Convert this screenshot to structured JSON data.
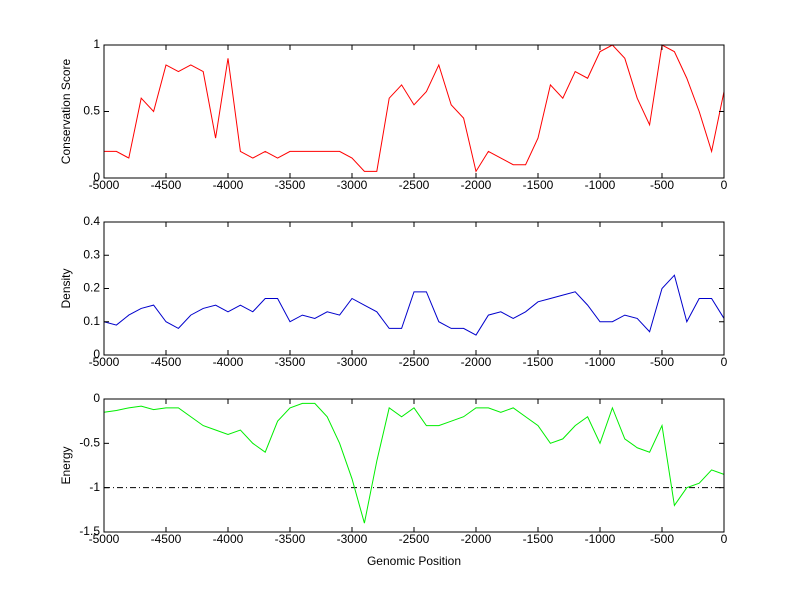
{
  "chart_data": [
    {
      "type": "line",
      "ylabel": "Conservation Score",
      "x": [
        -5000,
        -4900,
        -4800,
        -4700,
        -4600,
        -4500,
        -4400,
        -4300,
        -4200,
        -4100,
        -4000,
        -3900,
        -3800,
        -3700,
        -3600,
        -3500,
        -3400,
        -3300,
        -3200,
        -3100,
        -3000,
        -2900,
        -2800,
        -2700,
        -2600,
        -2500,
        -2400,
        -2300,
        -2200,
        -2100,
        -2000,
        -1900,
        -1800,
        -1700,
        -1600,
        -1500,
        -1400,
        -1300,
        -1200,
        -1100,
        -1000,
        -900,
        -800,
        -700,
        -600,
        -500,
        -400,
        -300,
        -200,
        -100,
        0
      ],
      "series": [
        {
          "color": "#ff0000",
          "values": [
            0.2,
            0.2,
            0.15,
            0.6,
            0.5,
            0.85,
            0.8,
            0.85,
            0.8,
            0.3,
            0.9,
            0.2,
            0.15,
            0.2,
            0.15,
            0.2,
            0.2,
            0.2,
            0.2,
            0.2,
            0.15,
            0.05,
            0.05,
            0.6,
            0.7,
            0.55,
            0.65,
            0.85,
            0.55,
            0.45,
            0.05,
            0.2,
            0.15,
            0.1,
            0.1,
            0.3,
            0.7,
            0.6,
            0.8,
            0.75,
            0.95,
            1.0,
            0.9,
            0.6,
            0.4,
            1.0,
            0.95,
            0.75,
            0.5,
            0.2,
            0.65
          ]
        }
      ],
      "xlim": [
        -5000,
        0
      ],
      "xticks": [
        -5000,
        -4500,
        -4000,
        -3500,
        -3000,
        -2500,
        -2000,
        -1500,
        -1000,
        -500,
        0
      ],
      "ylim": [
        0,
        1
      ],
      "yticks": [
        0,
        0.5,
        1
      ]
    },
    {
      "type": "line",
      "ylabel": "Density",
      "x": [
        -5000,
        -4900,
        -4800,
        -4700,
        -4600,
        -4500,
        -4400,
        -4300,
        -4200,
        -4100,
        -4000,
        -3900,
        -3800,
        -3700,
        -3600,
        -3500,
        -3400,
        -3300,
        -3200,
        -3100,
        -3000,
        -2900,
        -2800,
        -2700,
        -2600,
        -2500,
        -2400,
        -2300,
        -2200,
        -2100,
        -2000,
        -1900,
        -1800,
        -1700,
        -1600,
        -1500,
        -1400,
        -1300,
        -1200,
        -1100,
        -1000,
        -900,
        -800,
        -700,
        -600,
        -500,
        -400,
        -300,
        -200,
        -100,
        0
      ],
      "series": [
        {
          "color": "#0000cc",
          "values": [
            0.1,
            0.09,
            0.12,
            0.14,
            0.15,
            0.1,
            0.08,
            0.12,
            0.14,
            0.15,
            0.13,
            0.15,
            0.13,
            0.17,
            0.17,
            0.1,
            0.12,
            0.11,
            0.13,
            0.12,
            0.17,
            0.15,
            0.13,
            0.08,
            0.08,
            0.19,
            0.19,
            0.1,
            0.08,
            0.08,
            0.06,
            0.12,
            0.13,
            0.11,
            0.13,
            0.16,
            0.17,
            0.18,
            0.19,
            0.15,
            0.1,
            0.1,
            0.12,
            0.11,
            0.07,
            0.2,
            0.24,
            0.1,
            0.17,
            0.17,
            0.11
          ]
        }
      ],
      "xlim": [
        -5000,
        0
      ],
      "xticks": [
        -5000,
        -4500,
        -4000,
        -3500,
        -3000,
        -2500,
        -2000,
        -1500,
        -1000,
        -500,
        0
      ],
      "ylim": [
        0,
        0.4
      ],
      "yticks": [
        0,
        0.1,
        0.2,
        0.3,
        0.4
      ]
    },
    {
      "type": "line",
      "ylabel": "Energy",
      "xlabel": "Genomic Position",
      "x": [
        -5000,
        -4900,
        -4800,
        -4700,
        -4600,
        -4500,
        -4400,
        -4300,
        -4200,
        -4100,
        -4000,
        -3900,
        -3800,
        -3700,
        -3600,
        -3500,
        -3400,
        -3300,
        -3200,
        -3100,
        -3000,
        -2900,
        -2800,
        -2700,
        -2600,
        -2500,
        -2400,
        -2300,
        -2200,
        -2100,
        -2000,
        -1900,
        -1800,
        -1700,
        -1600,
        -1500,
        -1400,
        -1300,
        -1200,
        -1100,
        -1000,
        -900,
        -800,
        -700,
        -600,
        -500,
        -400,
        -300,
        -200,
        -100,
        0
      ],
      "series": [
        {
          "color": "#00ee00",
          "values": [
            -0.15,
            -0.13,
            -0.1,
            -0.08,
            -0.12,
            -0.1,
            -0.1,
            -0.2,
            -0.3,
            -0.35,
            -0.4,
            -0.35,
            -0.5,
            -0.6,
            -0.25,
            -0.1,
            -0.05,
            -0.05,
            -0.2,
            -0.5,
            -0.9,
            -1.4,
            -0.7,
            -0.1,
            -0.2,
            -0.1,
            -0.3,
            -0.3,
            -0.25,
            -0.2,
            -0.1,
            -0.1,
            -0.15,
            -0.1,
            -0.2,
            -0.3,
            -0.5,
            -0.45,
            -0.3,
            -0.2,
            -0.5,
            -0.1,
            -0.45,
            -0.55,
            -0.6,
            -0.3,
            -1.2,
            -1.0,
            -0.95,
            -0.8,
            -0.85
          ]
        }
      ],
      "hline": {
        "value": -1,
        "color": "#000000"
      },
      "xlim": [
        -5000,
        0
      ],
      "xticks": [
        -5000,
        -4500,
        -4000,
        -3500,
        -3000,
        -2500,
        -2000,
        -1500,
        -1000,
        -500,
        0
      ],
      "ylim": [
        -1.5,
        0
      ],
      "yticks": [
        -1.5,
        -1,
        -0.5,
        0
      ]
    }
  ]
}
